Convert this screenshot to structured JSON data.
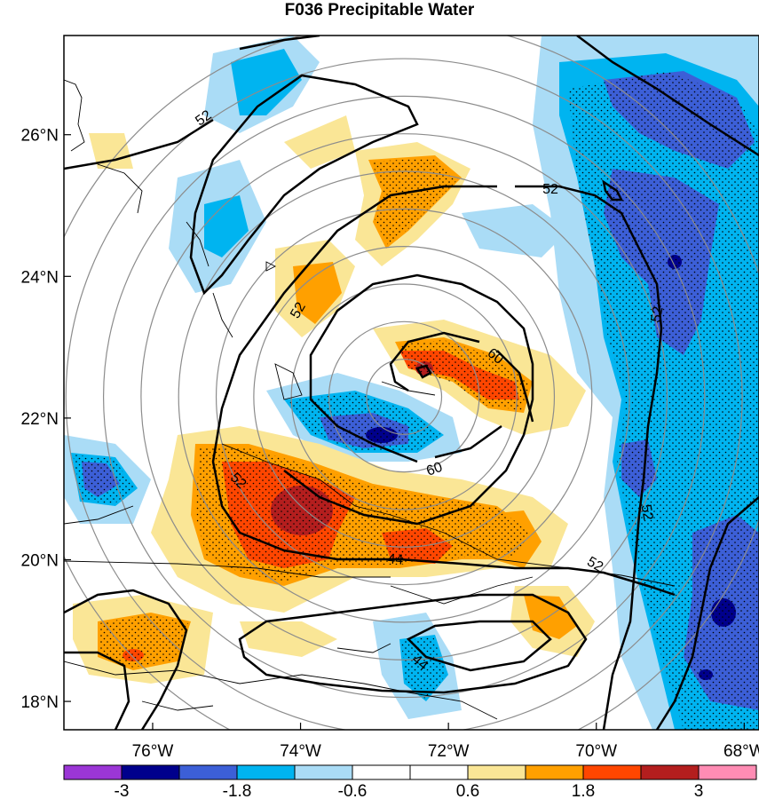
{
  "title": "F036 Precipitable Water",
  "map": {
    "lon_range": [
      -77.2,
      -67.8
    ],
    "lat_range": [
      17.6,
      27.4
    ],
    "lon_ticks": [
      {
        "value": -76,
        "label": "76°W"
      },
      {
        "value": -74,
        "label": "74°W"
      },
      {
        "value": -72,
        "label": "72°W"
      },
      {
        "value": -70,
        "label": "70°W"
      },
      {
        "value": -68,
        "label": "68°W"
      }
    ],
    "lat_ticks": [
      {
        "value": 26,
        "label": "26°N"
      },
      {
        "value": 24,
        "label": "24°N"
      },
      {
        "value": 22,
        "label": "22°N"
      },
      {
        "value": 20,
        "label": "20°N"
      },
      {
        "value": 18,
        "label": "18°N"
      }
    ],
    "range_rings": {
      "center_lon": -72.6,
      "center_lat": 22.3,
      "count": 10
    },
    "contour_labels": [
      "52",
      "52",
      "52",
      "60",
      "60",
      "52",
      "52",
      "52",
      "44"
    ]
  },
  "colorbar": {
    "colors": [
      "#9b36d6",
      "#00008c",
      "#3c5fd7",
      "#00b4f0",
      "#aadcf6",
      "#ffffff",
      "#ffffff",
      "#fae696",
      "#ffa000",
      "#ff4600",
      "#b41e1e",
      "#ff8cb4"
    ],
    "labels": [
      "-3",
      "-1.8",
      "-0.6",
      "0.6",
      "1.8",
      "3"
    ]
  }
}
